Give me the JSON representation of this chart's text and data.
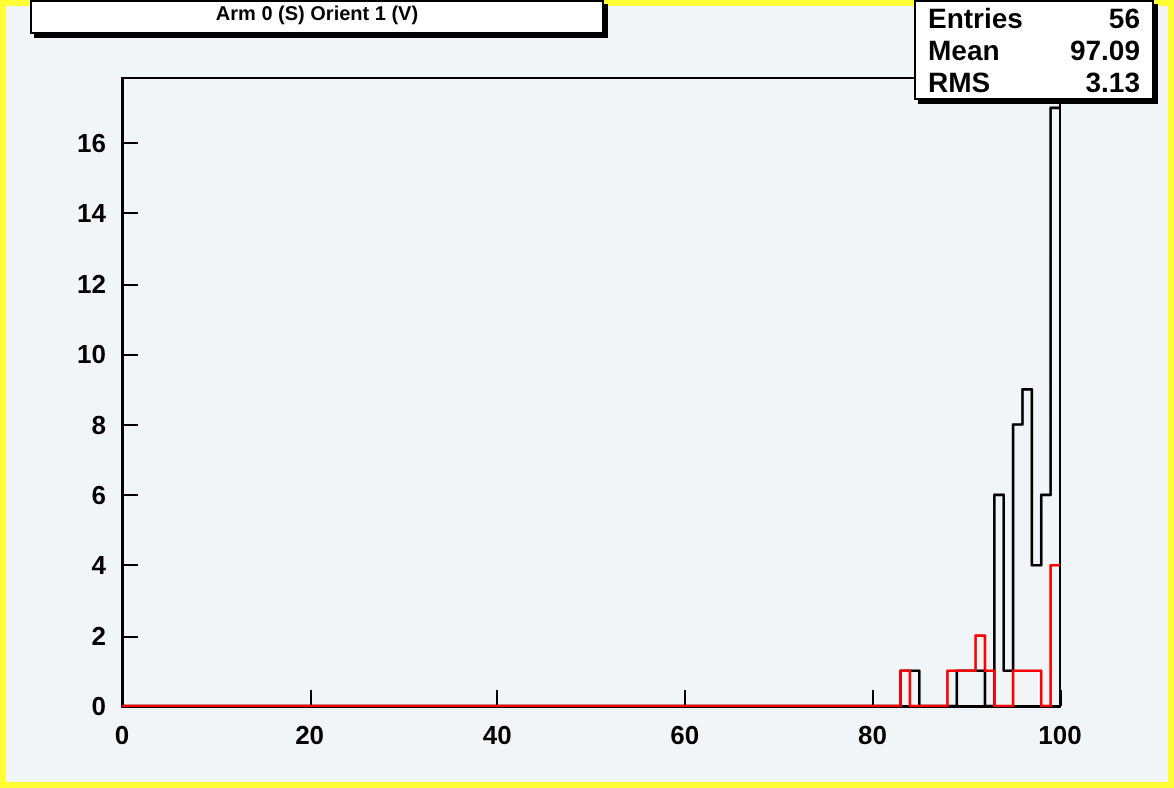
{
  "chart_data": {
    "type": "histogram",
    "title": "Arm 0 (S) Orient 1 (V)",
    "bins": [
      0,
      1,
      2,
      3,
      4,
      5,
      6,
      7,
      8,
      9,
      10,
      11,
      12,
      13,
      14,
      15,
      16,
      17,
      18,
      19,
      20,
      21,
      22,
      23,
      24,
      25,
      26,
      27,
      28,
      29,
      30,
      31,
      32,
      33,
      34,
      35,
      36,
      37,
      38,
      39,
      40,
      41,
      42,
      43,
      44,
      45,
      46,
      47,
      48,
      49,
      50,
      51,
      52,
      53,
      54,
      55,
      56,
      57,
      58,
      59,
      60,
      61,
      62,
      63,
      64,
      65,
      66,
      67,
      68,
      69,
      70,
      71,
      72,
      73,
      74,
      75,
      76,
      77,
      78,
      79,
      80,
      81,
      82,
      83,
      84,
      85,
      86,
      87,
      88,
      89,
      90,
      91,
      92,
      93,
      94,
      95,
      96,
      97,
      98,
      99,
      100
    ],
    "series": [
      {
        "color": "#000000",
        "values": [
          0,
          0,
          0,
          0,
          0,
          0,
          0,
          0,
          0,
          0,
          0,
          0,
          0,
          0,
          0,
          0,
          0,
          0,
          0,
          0,
          0,
          0,
          0,
          0,
          0,
          0,
          0,
          0,
          0,
          0,
          0,
          0,
          0,
          0,
          0,
          0,
          0,
          0,
          0,
          0,
          0,
          0,
          0,
          0,
          0,
          0,
          0,
          0,
          0,
          0,
          0,
          0,
          0,
          0,
          0,
          0,
          0,
          0,
          0,
          0,
          0,
          0,
          0,
          0,
          0,
          0,
          0,
          0,
          0,
          0,
          0,
          0,
          0,
          0,
          0,
          0,
          0,
          0,
          0,
          0,
          0,
          0,
          0,
          1,
          1,
          0,
          0,
          0,
          0,
          1,
          1,
          1,
          0,
          6,
          1,
          8,
          9,
          4,
          6,
          17
        ]
      },
      {
        "color": "#ff0000",
        "values": [
          0,
          0,
          0,
          0,
          0,
          0,
          0,
          0,
          0,
          0,
          0,
          0,
          0,
          0,
          0,
          0,
          0,
          0,
          0,
          0,
          0,
          0,
          0,
          0,
          0,
          0,
          0,
          0,
          0,
          0,
          0,
          0,
          0,
          0,
          0,
          0,
          0,
          0,
          0,
          0,
          0,
          0,
          0,
          0,
          0,
          0,
          0,
          0,
          0,
          0,
          0,
          0,
          0,
          0,
          0,
          0,
          0,
          0,
          0,
          0,
          0,
          0,
          0,
          0,
          0,
          0,
          0,
          0,
          0,
          0,
          0,
          0,
          0,
          0,
          0,
          0,
          0,
          0,
          0,
          0,
          0,
          0,
          0,
          1,
          0,
          0,
          0,
          0,
          1,
          1,
          1,
          2,
          1,
          0,
          0,
          1,
          1,
          1,
          0,
          4
        ]
      }
    ],
    "xlim": [
      0,
      100
    ],
    "xticks": [
      0,
      20,
      40,
      60,
      80,
      100
    ],
    "ylim": [
      0,
      17.85
    ],
    "yticks": [
      0,
      2,
      4,
      6,
      8,
      10,
      12,
      14,
      16
    ],
    "grid": false,
    "annotations": [
      "Entries 56",
      "Mean 97.09",
      "RMS 3.13"
    ]
  }
}
